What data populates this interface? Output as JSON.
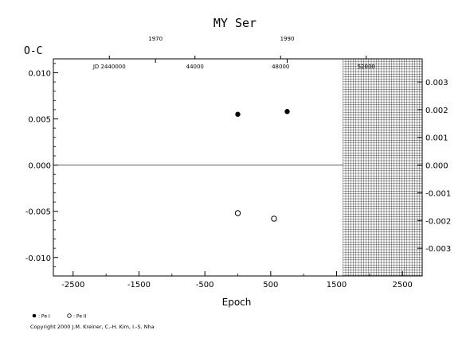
{
  "chart_data": {
    "type": "scatter",
    "title": "MY Ser",
    "ylabel": "O-C",
    "xlabel": "Epoch",
    "xlim": [
      -2800,
      2800
    ],
    "ylim": [
      -0.012,
      0.0115
    ],
    "x_ticks": [
      -2500,
      -1500,
      -500,
      500,
      1500,
      2500
    ],
    "x_tick_labels": [
      "-2500",
      "-1500",
      "-500",
      "500",
      "1500",
      "2500"
    ],
    "y_ticks": [
      0.01,
      0.005,
      0.0,
      -0.005,
      -0.01
    ],
    "y_tick_labels": [
      "0.010",
      "0.005",
      "0.000",
      "-0.005",
      "-0.010"
    ],
    "right_ticks": [
      0.003,
      0.002,
      0.001,
      0.0,
      -0.001,
      -0.002,
      -0.003
    ],
    "right_tick_labels": [
      "0.003",
      "0.002",
      "0.001",
      "0.000",
      "-0.001",
      "-0.002",
      "-0.003"
    ],
    "right_scale_factor": 0.3333,
    "top_year_ticks": [
      {
        "label": "1970",
        "epoch": -1250
      },
      {
        "label": "1990",
        "epoch": 750
      }
    ],
    "top_jd_ticks": [
      {
        "label": "JD 2440000",
        "epoch": -1950
      },
      {
        "label": "44000",
        "epoch": -650
      },
      {
        "label": "48000",
        "epoch": 650
      },
      {
        "label": "52000",
        "epoch": 1950
      }
    ],
    "hatched_from_epoch": 1600,
    "zero_line": 0.0,
    "grid": false,
    "series": [
      {
        "name": ": Pe I",
        "marker": "filled",
        "points": [
          {
            "x": 0,
            "y": 0.0055
          },
          {
            "x": 750,
            "y": 0.0058
          }
        ]
      },
      {
        "name": ": Pe II",
        "marker": "open",
        "points": [
          {
            "x": 0,
            "y": -0.0052
          },
          {
            "x": 550,
            "y": -0.0058
          }
        ]
      }
    ],
    "legend_position": "bottom-left"
  },
  "copyright": "Copyright 2000 J.M. Kreiner, C.-H. Kim, I.-S. Nha"
}
